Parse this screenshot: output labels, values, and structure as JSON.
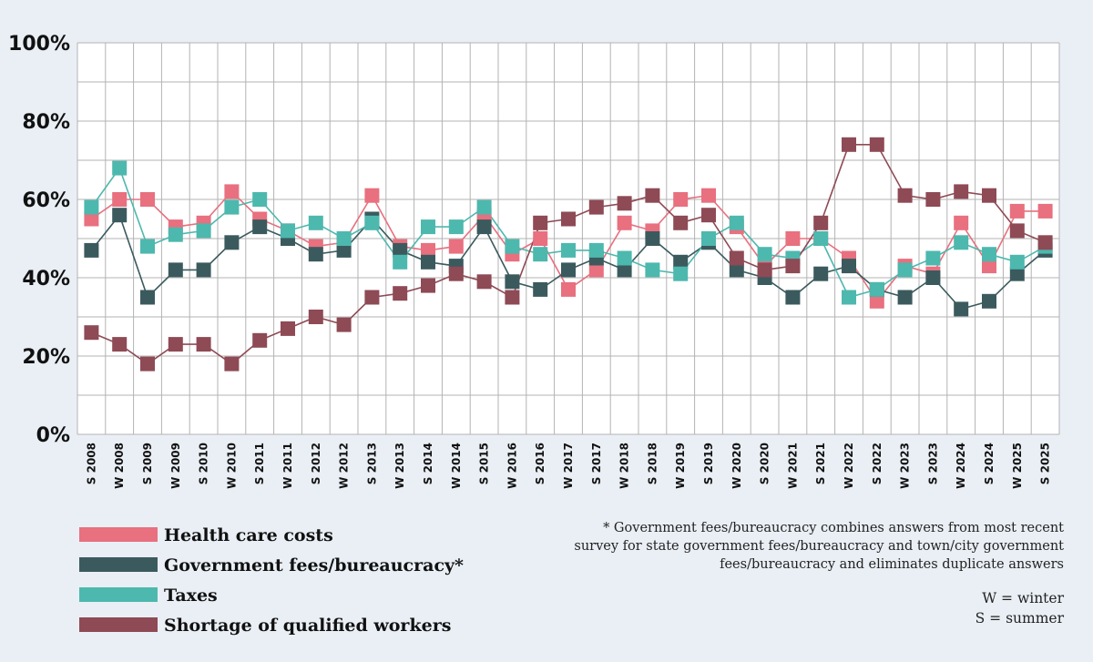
{
  "chart_data": {
    "type": "line",
    "categories": [
      "S 2008",
      "W 2008",
      "S 2009",
      "W 2009",
      "S 2010",
      "W 2010",
      "S 2011",
      "W 2011",
      "S 2012",
      "W 2012",
      "S 2013",
      "W 2013",
      "S 2014",
      "W 2014",
      "S 2015",
      "W 2016",
      "S 2016",
      "W 2017",
      "S 2017",
      "W 2018",
      "S 2018",
      "W 2019",
      "S 2019",
      "W 2020",
      "S 2020",
      "W 2021",
      "S 2021",
      "W 2022",
      "S 2022",
      "W 2023",
      "S 2023",
      "W 2024",
      "S 2024",
      "W 2025",
      "S 2025"
    ],
    "series": [
      {
        "name": "Health care costs",
        "color": "#e8707f",
        "values": [
          55,
          60,
          60,
          53,
          54,
          62,
          55,
          52,
          48,
          49,
          61,
          48,
          47,
          48,
          56,
          46,
          50,
          37,
          42,
          54,
          52,
          60,
          61,
          53,
          43,
          50,
          50,
          45,
          34,
          43,
          41,
          54,
          43,
          57,
          57
        ]
      },
      {
        "name": "Government fees/bureaucracy*",
        "color": "#3b5a5e",
        "values": [
          47,
          56,
          35,
          42,
          42,
          49,
          53,
          50,
          46,
          47,
          55,
          47,
          44,
          43,
          53,
          39,
          37,
          42,
          45,
          42,
          50,
          44,
          49,
          42,
          40,
          35,
          41,
          43,
          37,
          35,
          40,
          32,
          34,
          41,
          47
        ]
      },
      {
        "name": "Taxes",
        "color": "#4db8ae",
        "values": [
          58,
          68,
          48,
          51,
          52,
          58,
          60,
          52,
          54,
          50,
          54,
          44,
          53,
          53,
          58,
          48,
          46,
          47,
          47,
          45,
          42,
          41,
          50,
          54,
          46,
          45,
          50,
          35,
          37,
          42,
          45,
          49,
          46,
          44,
          48
        ]
      },
      {
        "name": "Shortage of qualified workers",
        "color": "#8e4a55",
        "values": [
          26,
          23,
          18,
          23,
          23,
          18,
          24,
          27,
          30,
          28,
          35,
          36,
          38,
          41,
          39,
          35,
          54,
          55,
          58,
          59,
          61,
          54,
          56,
          45,
          42,
          43,
          54,
          74,
          74,
          61,
          60,
          62,
          61,
          52,
          49
        ]
      }
    ],
    "ylim": [
      0,
      100
    ],
    "yticks": [
      {
        "value": 0,
        "label": "0%"
      },
      {
        "value": 20,
        "label": "20%"
      },
      {
        "value": 40,
        "label": "40%"
      },
      {
        "value": 60,
        "label": "60%"
      },
      {
        "value": 80,
        "label": "80%"
      },
      {
        "value": 100,
        "label": "100%"
      }
    ],
    "grid_yticks": [
      0,
      10,
      20,
      30,
      40,
      50,
      60,
      70,
      80,
      90,
      100
    ],
    "grid": true,
    "note": [
      "* Government fees/bureaucracy combines answers from most recent",
      "survey for state government fees/bureaucracy and town/city government",
      "fees/bureaucracy and eliminates duplicate answers"
    ],
    "key": [
      "W = winter",
      "S = summer"
    ]
  }
}
